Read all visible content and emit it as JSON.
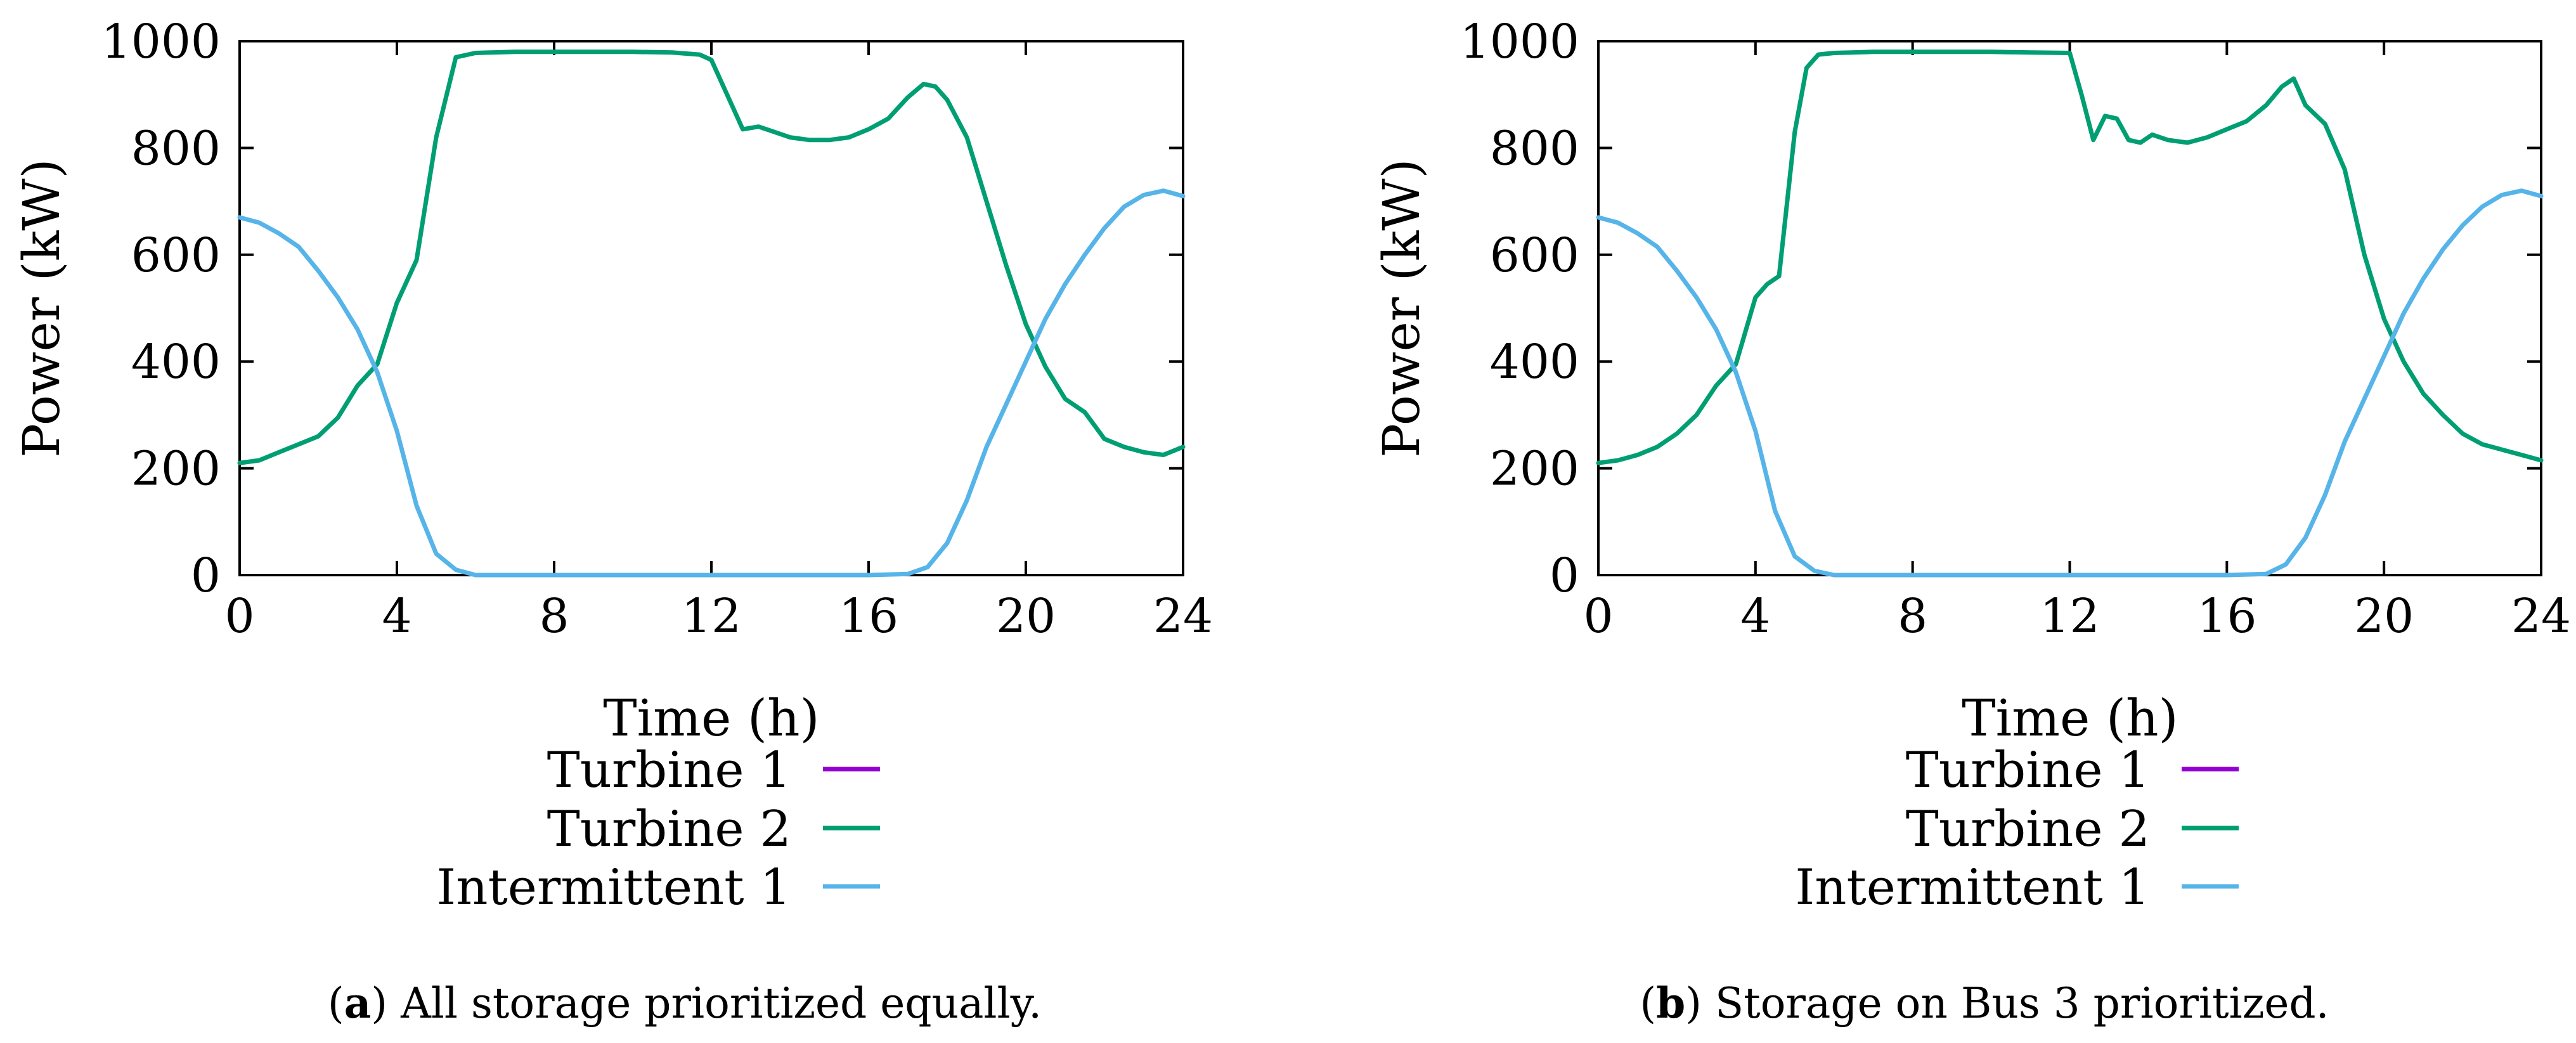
{
  "figure": {
    "captions": [
      {
        "tag": "a",
        "open": "(",
        "close": ")",
        "text": " All storage prioritized equally."
      },
      {
        "tag": "b",
        "open": "(",
        "close": ")",
        "text": " Storage on Bus 3 prioritized."
      }
    ]
  },
  "colors": {
    "turbine1": "#9400d3",
    "turbine2": "#009e73",
    "intermittent1": "#56b4e9",
    "axis": "#000000"
  },
  "chart_data": [
    {
      "type": "line",
      "panel": "a",
      "xlabel": "Time (h)",
      "ylabel": "Power (kW)",
      "xlim": [
        0,
        24
      ],
      "ylim": [
        0,
        1000
      ],
      "xticks": [
        "0",
        "4",
        "8",
        "12",
        "16",
        "20",
        "24"
      ],
      "xtick_values": [
        0,
        4,
        8,
        12,
        16,
        20,
        24
      ],
      "yticks": [
        "0",
        "200",
        "400",
        "600",
        "800",
        "1000"
      ],
      "ytick_values": [
        0,
        200,
        400,
        600,
        800,
        1000
      ],
      "legend_position": "below",
      "series": [
        {
          "name": "Turbine 1",
          "color_key": "turbine1",
          "x": [],
          "y": []
        },
        {
          "name": "Turbine 2",
          "color_key": "turbine2",
          "x": [
            0,
            0.5,
            1,
            1.5,
            2,
            2.5,
            3,
            3.5,
            4,
            4.5,
            5,
            5.5,
            6,
            7,
            8,
            9,
            10,
            11,
            11.7,
            12,
            12.4,
            12.8,
            13.2,
            13.6,
            14,
            14.5,
            15,
            15.5,
            16,
            16.5,
            17,
            17.4,
            17.7,
            18,
            18.5,
            19,
            19.5,
            20,
            20.5,
            21,
            21.5,
            22,
            22.5,
            23,
            23.5,
            24
          ],
          "y": [
            210,
            215,
            230,
            245,
            260,
            295,
            355,
            395,
            510,
            590,
            820,
            970,
            978,
            980,
            980,
            980,
            980,
            979,
            975,
            965,
            900,
            835,
            840,
            830,
            820,
            815,
            815,
            820,
            835,
            855,
            895,
            920,
            915,
            890,
            820,
            700,
            580,
            470,
            390,
            330,
            305,
            255,
            240,
            230,
            225,
            240
          ]
        },
        {
          "name": "Intermittent 1",
          "color_key": "intermittent1",
          "x": [
            0,
            0.5,
            1,
            1.5,
            2,
            2.5,
            3,
            3.5,
            4,
            4.5,
            5,
            5.5,
            6,
            8,
            10,
            12,
            14,
            16,
            17,
            17.5,
            18,
            18.5,
            19,
            19.5,
            20,
            20.5,
            21,
            21.5,
            22,
            22.5,
            23,
            23.5,
            24
          ],
          "y": [
            670,
            660,
            640,
            615,
            570,
            520,
            460,
            380,
            270,
            130,
            40,
            10,
            0,
            0,
            0,
            0,
            0,
            0,
            2,
            15,
            60,
            140,
            240,
            320,
            400,
            480,
            545,
            600,
            650,
            690,
            712,
            720,
            710
          ]
        }
      ]
    },
    {
      "type": "line",
      "panel": "b",
      "xlabel": "Time (h)",
      "ylabel": "Power (kW)",
      "xlim": [
        0,
        24
      ],
      "ylim": [
        0,
        1000
      ],
      "xticks": [
        "0",
        "4",
        "8",
        "12",
        "16",
        "20",
        "24"
      ],
      "xtick_values": [
        0,
        4,
        8,
        12,
        16,
        20,
        24
      ],
      "yticks": [
        "0",
        "200",
        "400",
        "600",
        "800",
        "1000"
      ],
      "ytick_values": [
        0,
        200,
        400,
        600,
        800,
        1000
      ],
      "legend_position": "below",
      "series": [
        {
          "name": "Turbine 1",
          "color_key": "turbine1",
          "x": [],
          "y": []
        },
        {
          "name": "Turbine 2",
          "color_key": "turbine2",
          "x": [
            0,
            0.5,
            1,
            1.5,
            2,
            2.5,
            3,
            3.5,
            4,
            4.3,
            4.6,
            5,
            5.3,
            5.6,
            6,
            7,
            8,
            9,
            10,
            11,
            12,
            12.3,
            12.6,
            12.9,
            13.2,
            13.5,
            13.8,
            14.1,
            14.5,
            15,
            15.5,
            16,
            16.5,
            17,
            17.4,
            17.7,
            18,
            18.5,
            19,
            19.5,
            20,
            20.5,
            21,
            21.5,
            22,
            22.5,
            23,
            23.5,
            24
          ],
          "y": [
            210,
            215,
            225,
            240,
            265,
            300,
            355,
            395,
            520,
            545,
            560,
            830,
            950,
            975,
            978,
            980,
            980,
            980,
            980,
            979,
            978,
            900,
            815,
            860,
            855,
            815,
            810,
            825,
            815,
            810,
            820,
            835,
            850,
            880,
            915,
            930,
            880,
            845,
            760,
            600,
            480,
            400,
            340,
            300,
            265,
            245,
            235,
            225,
            215
          ]
        },
        {
          "name": "Intermittent 1",
          "color_key": "intermittent1",
          "x": [
            0,
            0.5,
            1,
            1.5,
            2,
            2.5,
            3,
            3.5,
            4,
            4.5,
            5,
            5.5,
            6,
            8,
            10,
            12,
            14,
            16,
            17,
            17.5,
            18,
            18.5,
            19,
            19.5,
            20,
            20.5,
            21,
            21.5,
            22,
            22.5,
            23,
            23.5,
            24
          ],
          "y": [
            670,
            660,
            640,
            615,
            570,
            520,
            460,
            380,
            270,
            120,
            35,
            8,
            0,
            0,
            0,
            0,
            0,
            0,
            2,
            20,
            70,
            150,
            250,
            330,
            410,
            490,
            555,
            610,
            655,
            690,
            712,
            720,
            710
          ]
        }
      ]
    }
  ]
}
